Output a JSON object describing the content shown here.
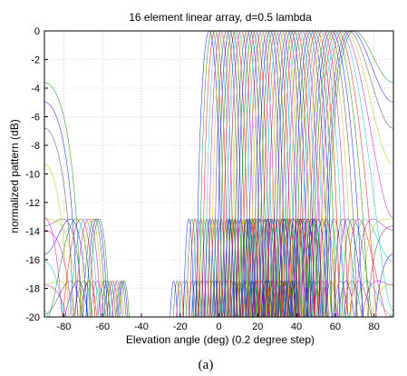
{
  "chart_data": {
    "type": "line",
    "title": "16 element linear array, d=0.5 lambda",
    "xlabel": "Elevation angle (deg) (0.2 degree step)",
    "ylabel": "normalized pattern (dB)",
    "caption": "(a)",
    "xlim": [
      -90,
      90
    ],
    "ylim": [
      -20,
      0
    ],
    "xticks": [
      "-80",
      "-60",
      "-40",
      "-20",
      "0",
      "20",
      "40",
      "60",
      "80"
    ],
    "yticks": [
      "0",
      "-2",
      "-4",
      "-6",
      "-8",
      "-10",
      "-12",
      "-14",
      "-16",
      "-18",
      "-20"
    ],
    "grid": true,
    "legend": "none",
    "array": {
      "elements": 16,
      "spacing_lambda": 0.5,
      "steer_start_deg": -5,
      "steer_end_deg": 70,
      "steer_step_deg": 1.5,
      "floor_db": -20
    },
    "colors": [
      "#0000ff",
      "#008000",
      "#ff0000",
      "#00bfbf",
      "#bf00bf",
      "#bfbf00",
      "#404040"
    ]
  }
}
